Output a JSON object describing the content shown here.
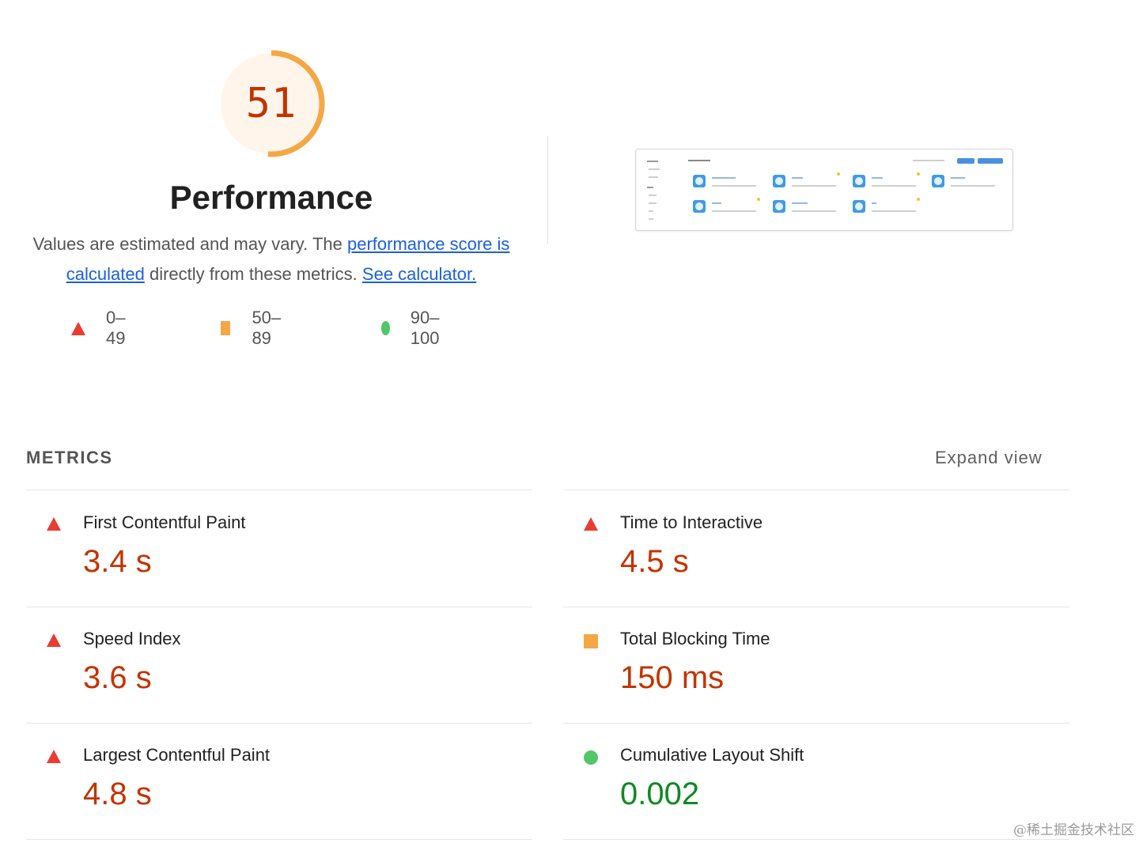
{
  "category": {
    "score": "51",
    "score_fraction": 0.51,
    "title": "Performance",
    "desc_prefix": "Values are estimated and may vary. The ",
    "link_score": "performance score is calculated",
    "desc_middle": " directly from these metrics. ",
    "link_calculator": "See calculator.",
    "colors": {
      "fail": "#eb3c30",
      "average": "#f4a845",
      "pass": "#52c768",
      "gauge_bg": "#fff5eb",
      "gauge_arc": "#f4a845"
    }
  },
  "legend": [
    {
      "shape": "triangle",
      "label": "0–49"
    },
    {
      "shape": "square",
      "label": "50–89"
    },
    {
      "shape": "circle",
      "label": "90–100"
    }
  ],
  "metrics_section": {
    "heading": "METRICS",
    "expand_label": "Expand view"
  },
  "metrics": [
    {
      "name": "First Contentful Paint",
      "value": "3.4 s",
      "rating": "fail"
    },
    {
      "name": "Time to Interactive",
      "value": "4.5 s",
      "rating": "fail"
    },
    {
      "name": "Speed Index",
      "value": "3.6 s",
      "rating": "fail"
    },
    {
      "name": "Total Blocking Time",
      "value": "150 ms",
      "rating": "average"
    },
    {
      "name": "Largest Contentful Paint",
      "value": "4.8 s",
      "rating": "fail"
    },
    {
      "name": "Cumulative Layout Shift",
      "value": "0.002",
      "rating": "pass"
    }
  ],
  "watermark": "@稀土掘金技术社区"
}
